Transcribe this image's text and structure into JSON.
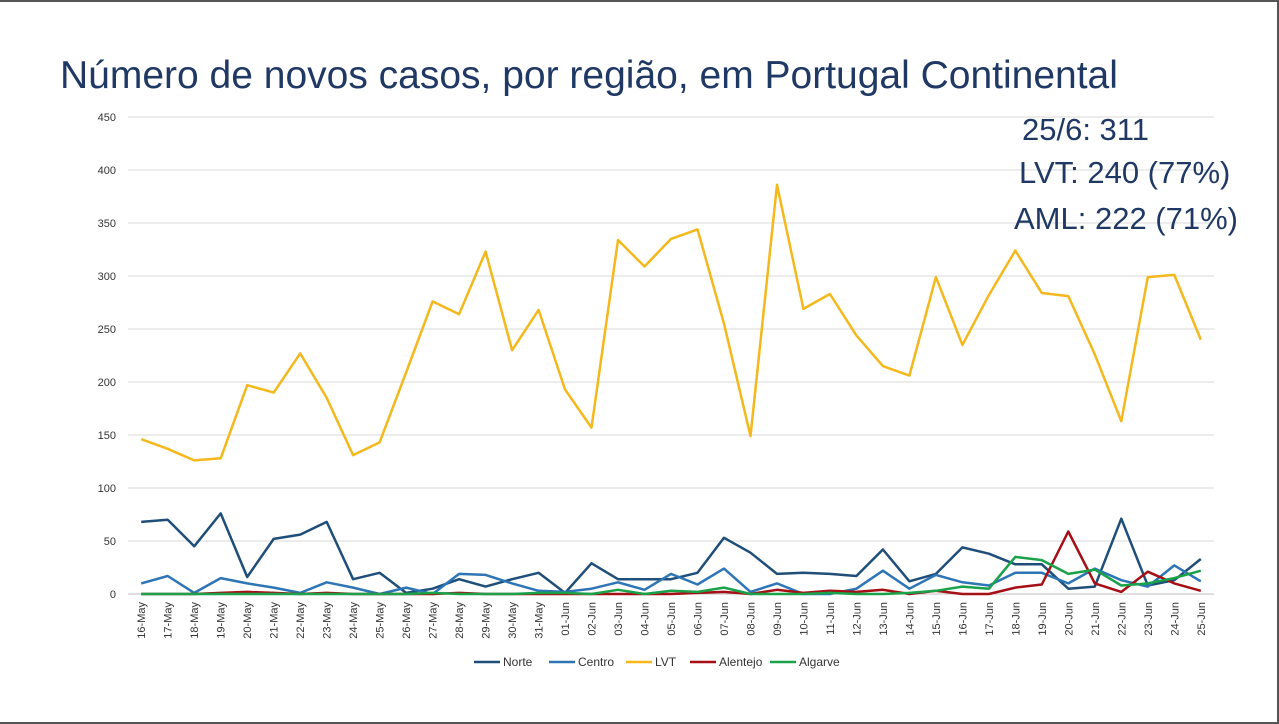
{
  "slide": {
    "title": "Número de novos casos, por região, em Portugal Continental",
    "callouts": [
      "25/6: 311",
      "LVT: 240 (77%)",
      "AML: 222 (71%)"
    ]
  },
  "colors": {
    "title": "#1f3864",
    "grid": "#d9d9d9",
    "Norte": "#1f4e79",
    "Centro": "#2e75b6",
    "LVT": "#f4b81c",
    "Alentejo": "#a50f15",
    "Algarve": "#1aa24a"
  },
  "chart_data": {
    "type": "line",
    "title": "",
    "xlabel": "",
    "ylabel": "",
    "ylim": [
      0,
      450
    ],
    "yticks": [
      0,
      50,
      100,
      150,
      200,
      250,
      300,
      350,
      400,
      450
    ],
    "grid": true,
    "legend_position": "bottom",
    "categories": [
      "16-May",
      "17-May",
      "18-May",
      "19-May",
      "20-May",
      "21-May",
      "22-May",
      "23-May",
      "24-May",
      "25-May",
      "26-May",
      "27-May",
      "28-May",
      "29-May",
      "30-May",
      "31-May",
      "01-Jun",
      "02-Jun",
      "03-Jun",
      "04-Jun",
      "05-Jun",
      "06-Jun",
      "07-Jun",
      "08-Jun",
      "09-Jun",
      "10-Jun",
      "11-Jun",
      "12-Jun",
      "13-Jun",
      "14-Jun",
      "15-Jun",
      "16-Jun",
      "17-Jun",
      "18-Jun",
      "19-Jun",
      "20-Jun",
      "21-Jun",
      "22-Jun",
      "23-Jun",
      "24-Jun",
      "25-Jun"
    ],
    "series": [
      {
        "name": "Norte",
        "values": [
          68,
          70,
          45,
          76,
          16,
          52,
          56,
          68,
          14,
          20,
          1,
          5,
          14,
          7,
          14,
          20,
          1,
          29,
          14,
          14,
          14,
          20,
          53,
          39,
          19,
          20,
          19,
          17,
          42,
          12,
          19,
          44,
          38,
          28,
          28,
          5,
          7,
          71,
          8,
          13,
          33
        ]
      },
      {
        "name": "Centro",
        "values": [
          10,
          17,
          1,
          15,
          10,
          6,
          1,
          11,
          6,
          0,
          6,
          0,
          19,
          18,
          10,
          3,
          2,
          5,
          11,
          4,
          19,
          9,
          24,
          2,
          10,
          0,
          0,
          5,
          22,
          5,
          18,
          11,
          8,
          20,
          20,
          10,
          24,
          13,
          7,
          27,
          12
        ]
      },
      {
        "name": "LVT",
        "values": [
          146,
          137,
          126,
          128,
          197,
          190,
          227,
          185,
          131,
          143,
          209,
          276,
          264,
          323,
          230,
          268,
          193,
          157,
          334,
          309,
          335,
          344,
          255,
          149,
          386,
          269,
          283,
          244,
          215,
          206,
          299,
          235,
          282,
          324,
          284,
          281,
          226,
          163,
          299,
          301,
          240
        ]
      },
      {
        "name": "Alentejo",
        "values": [
          0,
          0,
          0,
          1,
          2,
          1,
          0,
          1,
          0,
          0,
          0,
          0,
          1,
          0,
          0,
          0,
          0,
          0,
          0,
          0,
          0,
          1,
          2,
          0,
          4,
          1,
          3,
          2,
          4,
          0,
          3,
          0,
          0,
          6,
          9,
          59,
          10,
          2,
          21,
          10,
          3
        ]
      },
      {
        "name": "Algarve",
        "values": [
          0,
          0,
          0,
          0,
          0,
          0,
          0,
          0,
          0,
          0,
          0,
          1,
          0,
          0,
          0,
          1,
          1,
          0,
          4,
          0,
          3,
          2,
          6,
          0,
          0,
          0,
          1,
          0,
          0,
          1,
          3,
          7,
          5,
          35,
          32,
          19,
          23,
          8,
          10,
          15,
          22
        ]
      }
    ]
  }
}
